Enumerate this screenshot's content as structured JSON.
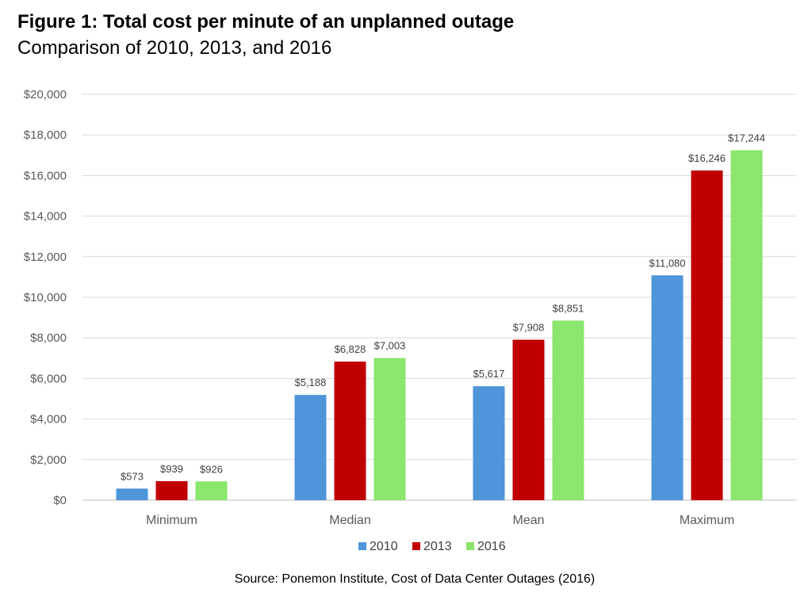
{
  "chart_data": {
    "type": "bar",
    "title": "Figure 1: Total cost per minute of an unplanned outage",
    "subtitle": "Comparison of 2010, 2013, and 2016",
    "categories": [
      "Minimum",
      "Median",
      "Mean",
      "Maximum"
    ],
    "series": [
      {
        "name": "2010",
        "color": "#4E95D9",
        "values": [
          573,
          5188,
          5617,
          11080
        ],
        "labels": [
          "$573",
          "$5,188",
          "$5,617",
          "$11,080"
        ]
      },
      {
        "name": "2013",
        "color": "#C00000",
        "values": [
          939,
          6828,
          7908,
          16246
        ],
        "labels": [
          "$939",
          "$6,828",
          "$7,908",
          "$16,246"
        ]
      },
      {
        "name": "2016",
        "color": "#8AE66C",
        "values": [
          926,
          7003,
          8851,
          17244
        ],
        "labels": [
          "$926",
          "$7,003",
          "$8,851",
          "$17,244"
        ]
      }
    ],
    "ylim": [
      0,
      20000
    ],
    "yticks": [
      "$0",
      "$2,000",
      "$4,000",
      "$6,000",
      "$8,000",
      "$10,000",
      "$12,000",
      "$14,000",
      "$16,000",
      "$18,000",
      "$20,000"
    ],
    "grid": true,
    "legend_position": "bottom",
    "source": "Source: Ponemon Institute, Cost of Data Center Outages (2016)"
  }
}
